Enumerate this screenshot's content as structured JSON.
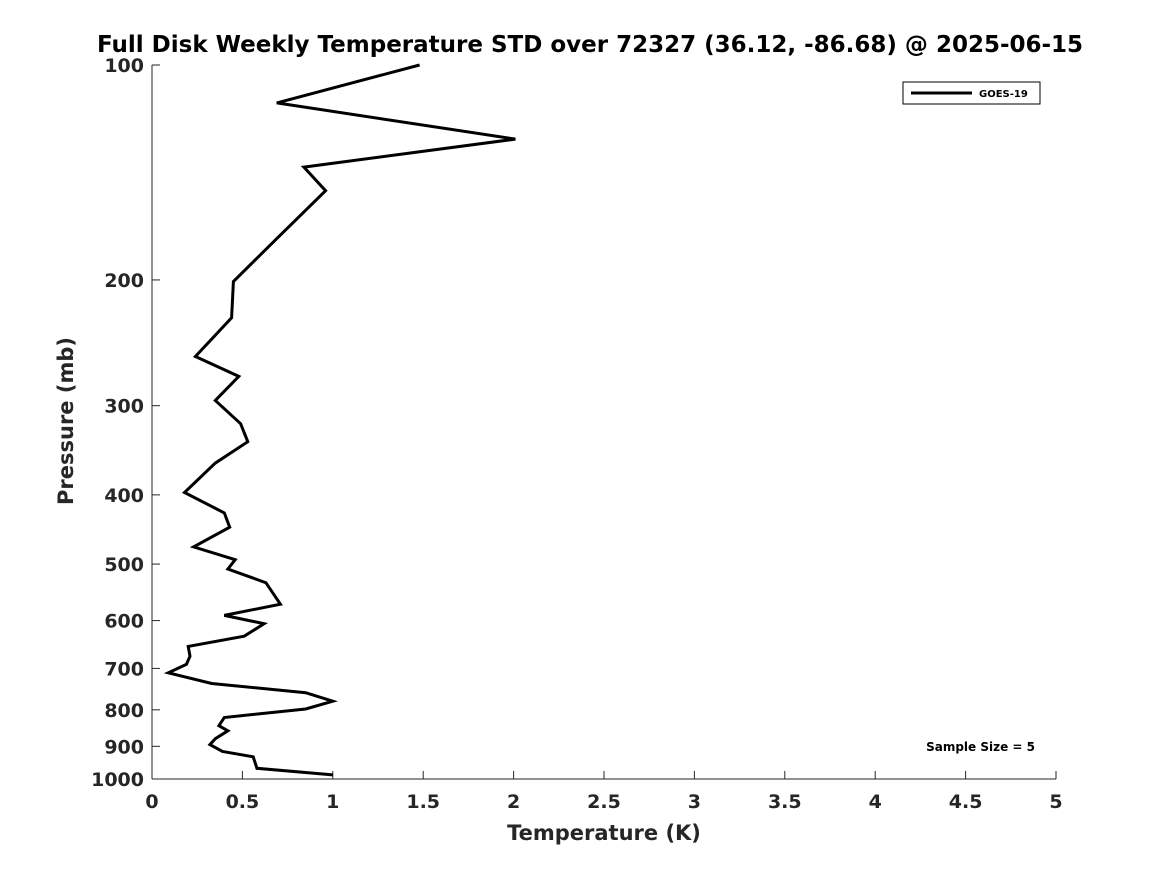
{
  "chart_data": {
    "type": "line",
    "title": "Full Disk Weekly Temperature STD over 72327 (36.12, -86.68) @ 2025-06-15",
    "xlabel": "Temperature (K)",
    "ylabel": "Pressure (mb)",
    "xlim": [
      0,
      5
    ],
    "ylim": [
      1000,
      100
    ],
    "yscale": "log",
    "x_ticks": [
      0,
      0.5,
      1,
      1.5,
      2,
      2.5,
      3,
      3.5,
      4,
      4.5,
      5
    ],
    "x_tick_labels": [
      "0",
      "0.5",
      "1",
      "1.5",
      "2",
      "2.5",
      "3",
      "3.5",
      "4",
      "4.5",
      "5"
    ],
    "y_ticks": [
      100,
      200,
      300,
      400,
      500,
      600,
      700,
      800,
      900,
      1000
    ],
    "y_tick_labels": [
      "100",
      "200",
      "300",
      "400",
      "500",
      "600",
      "700",
      "800",
      "900",
      "1000"
    ],
    "grid": false,
    "legend_position": "top-right",
    "series": [
      {
        "name": "GOES-19",
        "color": "#000000",
        "points": [
          [
            1.48,
            100
          ],
          [
            0.69,
            113
          ],
          [
            2.01,
            127
          ],
          [
            0.84,
            139
          ],
          [
            0.96,
            150
          ],
          [
            0.7,
            174
          ],
          [
            0.45,
            201
          ],
          [
            0.44,
            226
          ],
          [
            0.24,
            256
          ],
          [
            0.48,
            273
          ],
          [
            0.35,
            295
          ],
          [
            0.49,
            318
          ],
          [
            0.53,
            337
          ],
          [
            0.35,
            361
          ],
          [
            0.18,
            397
          ],
          [
            0.4,
            424
          ],
          [
            0.43,
            444
          ],
          [
            0.23,
            473
          ],
          [
            0.46,
            493
          ],
          [
            0.42,
            508
          ],
          [
            0.63,
            531
          ],
          [
            0.71,
            569
          ],
          [
            0.4,
            590
          ],
          [
            0.62,
            606
          ],
          [
            0.51,
            631
          ],
          [
            0.2,
            652
          ],
          [
            0.21,
            673
          ],
          [
            0.19,
            691
          ],
          [
            0.09,
            710
          ],
          [
            0.33,
            735
          ],
          [
            0.85,
            757
          ],
          [
            1.0,
            778
          ],
          [
            0.85,
            798
          ],
          [
            0.4,
            820
          ],
          [
            0.37,
            842
          ],
          [
            0.42,
            856
          ],
          [
            0.35,
            878
          ],
          [
            0.32,
            895
          ],
          [
            0.39,
            915
          ],
          [
            0.56,
            931
          ],
          [
            0.58,
            966
          ],
          [
            1.0,
            987
          ]
        ]
      }
    ],
    "annotations": [
      {
        "text": "Sample Size = 5",
        "position": "bottom-right"
      }
    ]
  }
}
